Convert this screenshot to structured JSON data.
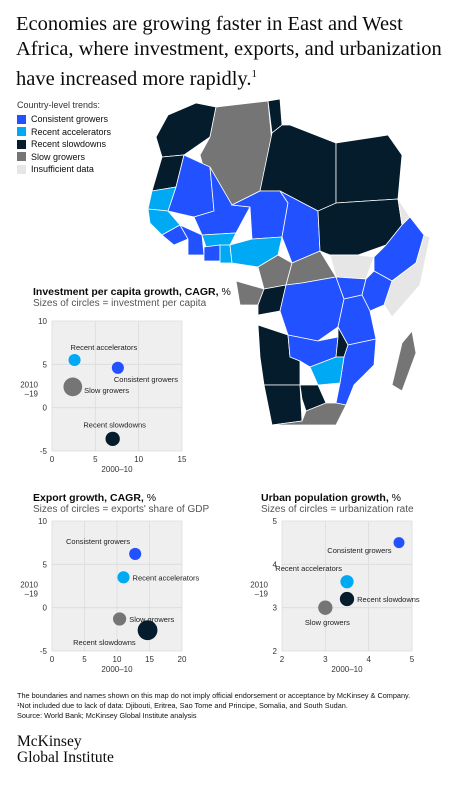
{
  "title": "Economies are growing faster in East and West Africa, where investment, exports, and urbanization have increased more rapidly.",
  "title_footnote": "1",
  "legend": {
    "title": "Country-level trends:",
    "items": [
      {
        "label": "Consistent growers",
        "color": "#2251ff"
      },
      {
        "label": "Recent accelerators",
        "color": "#00a9f4"
      },
      {
        "label": "Recent slowdowns",
        "color": "#051c2c"
      },
      {
        "label": "Slow growers",
        "color": "#757575"
      },
      {
        "label": "Insufficient data",
        "color": "#e6e6e6"
      }
    ]
  },
  "colors": {
    "consistent": "#2251ff",
    "accelerators": "#00a9f4",
    "slowdowns": "#051c2c",
    "slow": "#757575",
    "nodata": "#e6e6e6",
    "plot_bg": "#efefef",
    "axis_text": "#333333"
  },
  "chart_data": [
    {
      "type": "scatter",
      "title": "Investment per capita growth, CAGR,",
      "unit": "%",
      "subtitle": "Sizes of circles = investment per capita",
      "xlabel": "2000–10",
      "ylabel": "2010\n–19",
      "xlim": [
        0,
        15
      ],
      "ylim": [
        -5,
        10
      ],
      "xticks": [
        "0",
        "5",
        "10",
        "15"
      ],
      "yticks": [
        "-5",
        "0",
        "5",
        "10"
      ],
      "points": [
        {
          "name": "Recent accelerators",
          "x": 2.6,
          "y": 5.5,
          "size": 1.1,
          "color": "#00a9f4",
          "label_pos": "above-right"
        },
        {
          "name": "Consistent growers",
          "x": 7.6,
          "y": 4.6,
          "size": 1.1,
          "color": "#2251ff",
          "label_pos": "below-right"
        },
        {
          "name": "Slow growers",
          "x": 2.4,
          "y": 2.4,
          "size": 1.7,
          "color": "#757575",
          "label_pos": "right-low"
        },
        {
          "name": "Recent slowdowns",
          "x": 7.0,
          "y": -3.6,
          "size": 1.3,
          "color": "#051c2c",
          "label_pos": "above"
        }
      ]
    },
    {
      "type": "scatter",
      "title": "Export growth, CAGR,",
      "unit": "%",
      "subtitle": "Sizes of circles = exports' share of GDP",
      "xlabel": "2000–10",
      "ylabel": "2010\n–19",
      "xlim": [
        0,
        20
      ],
      "ylim": [
        -5,
        10
      ],
      "xticks": [
        "0",
        "5",
        "10",
        "15",
        "20"
      ],
      "yticks": [
        "-5",
        "0",
        "5",
        "10"
      ],
      "points": [
        {
          "name": "Consistent growers",
          "x": 12.8,
          "y": 6.2,
          "size": 1.1,
          "color": "#2251ff",
          "label_pos": "above-left"
        },
        {
          "name": "Recent accelerators",
          "x": 11.0,
          "y": 3.5,
          "size": 1.1,
          "color": "#00a9f4",
          "label_pos": "right"
        },
        {
          "name": "Slow growers",
          "x": 10.4,
          "y": -1.3,
          "size": 1.2,
          "color": "#757575",
          "label_pos": "right"
        },
        {
          "name": "Recent slowdowns",
          "x": 14.7,
          "y": -2.6,
          "size": 1.8,
          "color": "#051c2c",
          "label_pos": "below-left"
        }
      ]
    },
    {
      "type": "scatter",
      "title": "Urban population growth,",
      "unit": "%",
      "subtitle": "Sizes of circles = urbanization rate",
      "xlabel": "2000–10",
      "ylabel": "2010\n–19",
      "xlim": [
        2,
        5
      ],
      "ylim": [
        2,
        5
      ],
      "xticks": [
        "2",
        "3",
        "4",
        "5"
      ],
      "yticks": [
        "2",
        "3",
        "4",
        "5"
      ],
      "points": [
        {
          "name": "Consistent growers",
          "x": 4.7,
          "y": 4.5,
          "size": 1.0,
          "color": "#2251ff",
          "label_pos": "below-left"
        },
        {
          "name": "Recent accelerators",
          "x": 3.5,
          "y": 3.6,
          "size": 1.2,
          "color": "#00a9f4",
          "label_pos": "above-left"
        },
        {
          "name": "Recent slowdowns",
          "x": 3.5,
          "y": 3.2,
          "size": 1.3,
          "color": "#051c2c",
          "label_pos": "right"
        },
        {
          "name": "Slow growers",
          "x": 3.0,
          "y": 3.0,
          "size": 1.3,
          "color": "#757575",
          "label_pos": "below"
        }
      ]
    }
  ],
  "footer": {
    "disclaimer": "The boundaries and names shown on this map do not imply official endorsement or acceptance by McKinsey & Company.",
    "note": "¹Not included due to lack of data: Djibouti, Eritrea, Sao Tome and Principe, Somalia, and South Sudan.",
    "source": "Source: World Bank; McKinsey Global Institute analysis"
  },
  "logo": {
    "line1": "McKinsey",
    "line2": "Global Institute"
  }
}
